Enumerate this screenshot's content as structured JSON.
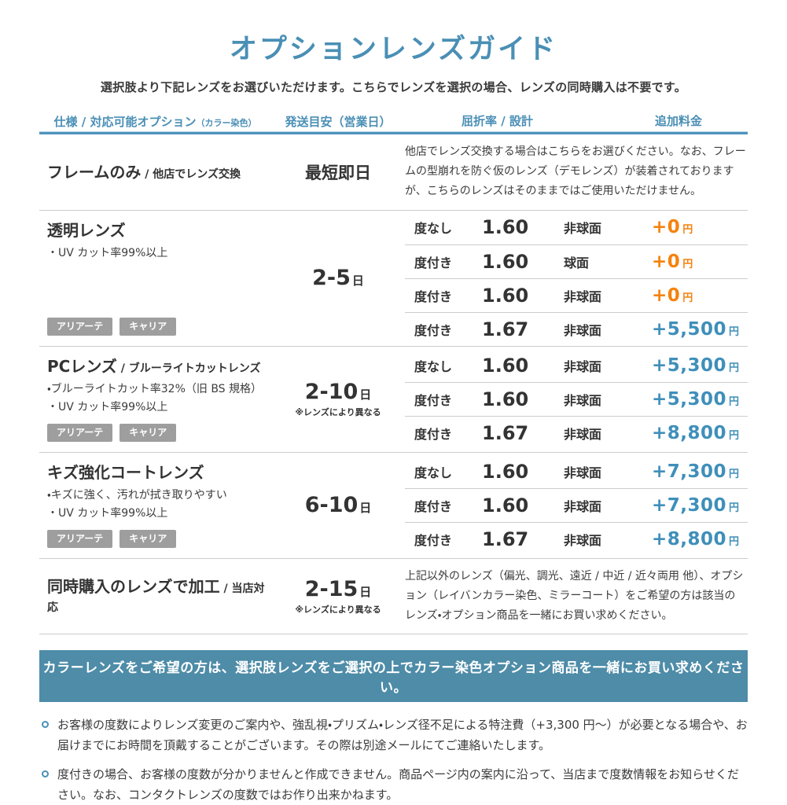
{
  "page": {
    "title": "オプションレンズガイド",
    "subtitle": "選択肢より下記レンズをお選びいただけます。こちらでレンズを選択の場合、レンズの同時購入は不要です。"
  },
  "table": {
    "headers": {
      "spec": "仕様 / 対応可能オプション",
      "spec_small": "（カラー染色）",
      "shipping": "発送目安（営業日）",
      "index_design": "屈折率 / 設計",
      "price": "追加料金"
    },
    "sections": [
      {
        "name": "フレームのみ",
        "suffix": "/ 他店でレンズ交換",
        "shipping": {
          "text": "最短即日"
        },
        "description": "他店でレンズ交換する場合はこちらをお選びください。なお、フレームの型崩れを防ぐ仮のレンズ（デモレンズ）が装着されておりますが、こちらのレンズはそのままではご使用いただけません。"
      },
      {
        "name": "透明レンズ",
        "bullets": [
          "・UV カット率99%以上"
        ],
        "badges": [
          "アリアーテ",
          "キャリア"
        ],
        "shipping": {
          "value": "2-5",
          "unit": "日"
        },
        "rows": [
          {
            "power": "度なし",
            "index": "1.60",
            "design": "非球面",
            "price": "+0",
            "unit": "円",
            "color": "orange"
          },
          {
            "power": "度付き",
            "index": "1.60",
            "design": "球面",
            "price": "+0",
            "unit": "円",
            "color": "orange"
          },
          {
            "power": "度付き",
            "index": "1.60",
            "design": "非球面",
            "price": "+0",
            "unit": "円",
            "color": "orange"
          },
          {
            "power": "度付き",
            "index": "1.67",
            "design": "非球面",
            "price": "+5,500",
            "unit": "円",
            "color": "blue"
          }
        ]
      },
      {
        "name": "PCレンズ",
        "suffix": "/ ブルーライトカットレンズ",
        "bullets": [
          "・ブルーライトカット率32%（旧 BS 規格）",
          "・UV カット率99%以上"
        ],
        "badges": [
          "アリアーテ",
          "キャリア"
        ],
        "shipping": {
          "value": "2-10",
          "unit": "日",
          "note": "※レンズにより異なる"
        },
        "rows": [
          {
            "power": "度なし",
            "index": "1.60",
            "design": "非球面",
            "price": "+5,300",
            "unit": "円",
            "color": "blue"
          },
          {
            "power": "度付き",
            "index": "1.60",
            "design": "非球面",
            "price": "+5,300",
            "unit": "円",
            "color": "blue"
          },
          {
            "power": "度付き",
            "index": "1.67",
            "design": "非球面",
            "price": "+8,800",
            "unit": "円",
            "color": "blue"
          }
        ]
      },
      {
        "name": "キズ強化コートレンズ",
        "bullets": [
          "・キズに強く、汚れが拭き取りやすい",
          "・UV カット率99%以上"
        ],
        "badges": [
          "アリアーテ",
          "キャリア"
        ],
        "shipping": {
          "value": "6-10",
          "unit": "日"
        },
        "rows": [
          {
            "power": "度なし",
            "index": "1.60",
            "design": "非球面",
            "price": "+7,300",
            "unit": "円",
            "color": "blue"
          },
          {
            "power": "度付き",
            "index": "1.60",
            "design": "非球面",
            "price": "+7,300",
            "unit": "円",
            "color": "blue"
          },
          {
            "power": "度付き",
            "index": "1.67",
            "design": "非球面",
            "price": "+8,800",
            "unit": "円",
            "color": "blue"
          }
        ]
      },
      {
        "name": "同時購入のレンズで加工",
        "suffix": "/ 当店対応",
        "shipping": {
          "value": "2-15",
          "unit": "日",
          "note": "※レンズにより異なる"
        },
        "description": "上記以外のレンズ（偏光、調光、遠近 / 中近 / 近々両用 他）、オプション（レイバンカラー染色、ミラーコート）をご希望の方は該当のレンズ・オプション商品を一緒にお買い求めください。"
      }
    ]
  },
  "banner": {
    "text": "カラーレンズをご希望の方は、選択肢レンズをご選択の上でカラー染色オプション商品を一緒にお買い求めください。"
  },
  "notes": [
    "お客様の度数によりレンズ変更のご案内や、強乱視・プリズム・レンズ径不足による特注費（+3,300 円〜）が必要となる場合や、お届けまでにお時間を頂戴することがございます。その際は別途メールにてご連絡いたします。",
    "度付きの場合、お客様の度数が分かりませんと作成できません。商品ページ内の案内に沿って、当店まで度数情報をお知らせください。なお、コンタクトレンズの度数ではお作り出来かねます。"
  ],
  "colors": {
    "accent_blue": "#4A8FB5",
    "price_blue": "#3F8FBA",
    "price_orange": "#F5820E",
    "banner_bg": "#4E8CA8",
    "badge_gray": "#9E9E9E",
    "text_dark": "#333333",
    "divider": "#CCCCCC"
  }
}
